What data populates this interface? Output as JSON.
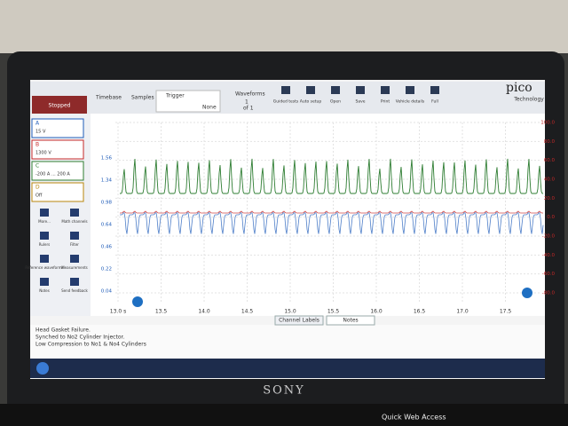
{
  "toolbar": {
    "status": "Stopped",
    "timebase": "Timebase",
    "samples": "Samples",
    "trigger": "Trigger",
    "trigger_mode": "None",
    "waveforms": "Waveforms",
    "waveform_index": "1",
    "waveform_count": "of 1",
    "buttons": [
      "Guided tests",
      "Auto setup",
      "Open",
      "Save",
      "Print",
      "Vehicle details",
      "Full"
    ]
  },
  "logo": {
    "name": "pico",
    "tagline": "Technology"
  },
  "channels": [
    {
      "name": "A",
      "range": "15 V"
    },
    {
      "name": "B",
      "range": "1300 V"
    },
    {
      "name": "C",
      "range": "-200 A ... 200 A"
    },
    {
      "name": "D",
      "range": "Off"
    }
  ],
  "tools": [
    "More...",
    "Math channels",
    "Rulers",
    "Filter",
    "Reference waveforms",
    "Measurements",
    "Notes",
    "Send feedback"
  ],
  "left_axis": [
    "1.56",
    "1.34",
    "0.98",
    "0.64",
    "0.46",
    "0.22",
    "0.04"
  ],
  "right_axis": [
    "100.0",
    "80.0",
    "60.0",
    "40.0",
    "20.0",
    "0.0",
    "-20.0",
    "-40.0",
    "-60.0",
    "-80.0"
  ],
  "time_axis": [
    "13.0 s",
    "13.5",
    "14.0",
    "14.5",
    "15.0",
    "15.5",
    "16.0",
    "16.5",
    "17.0",
    "17.5"
  ],
  "tabs": [
    "Channel Labels",
    "Notes"
  ],
  "notes": [
    "Head Gasket Failure.",
    "Synched to No2 Cylinder Injector.",
    "Low Compression to No1 & No4 Cylinders"
  ],
  "laptop": {
    "brand": "SONY",
    "quick_web": "Quick Web Access"
  }
}
